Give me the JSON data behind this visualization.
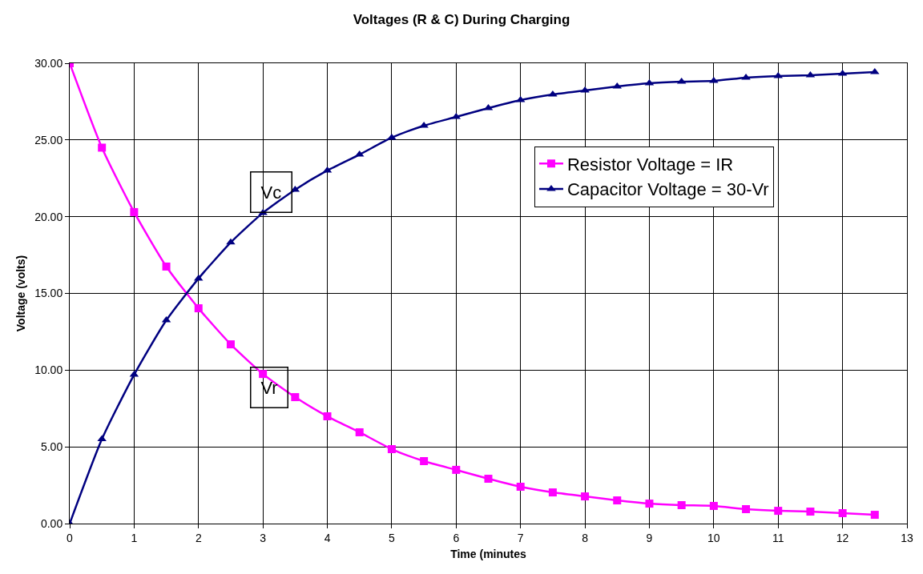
{
  "chart_data": {
    "type": "line",
    "title": "Voltages (R & C) During Charging",
    "xlabel": "Time (minutes",
    "ylabel": "Voltage (volts)",
    "x": [
      0,
      0.5,
      1,
      1.5,
      2,
      2.5,
      3,
      3.5,
      4,
      4.5,
      5,
      5.5,
      6,
      6.5,
      7,
      7.5,
      8,
      8.5,
      9,
      9.5,
      10,
      10.5,
      11,
      11.5,
      12,
      12.5
    ],
    "series": [
      {
        "name": "Resistor Voltage = IR",
        "color": "#ff00ff",
        "marker": "square",
        "values": [
          30,
          24.5,
          20.3,
          16.75,
          14.03,
          11.68,
          9.75,
          8.24,
          6.99,
          5.95,
          4.85,
          4.07,
          3.5,
          2.92,
          2.4,
          2.03,
          1.77,
          1.51,
          1.3,
          1.2,
          1.15,
          0.94,
          0.83,
          0.78,
          0.68,
          0.57
        ]
      },
      {
        "name": "Capacitor Voltage = 30-Vr",
        "color": "#000080",
        "marker": "triangle",
        "values": [
          0,
          5.5,
          9.7,
          13.25,
          15.97,
          18.32,
          20.25,
          21.76,
          23.01,
          24.05,
          25.15,
          25.93,
          26.5,
          27.08,
          27.6,
          27.97,
          28.23,
          28.49,
          28.7,
          28.8,
          28.85,
          29.06,
          29.17,
          29.22,
          29.32,
          29.43
        ]
      }
    ],
    "annotations": [
      "Vc",
      "Vr"
    ],
    "xlim": [
      0,
      13
    ],
    "xticks": [
      0,
      1,
      2,
      3,
      4,
      5,
      6,
      7,
      8,
      9,
      10,
      11,
      12,
      13
    ],
    "ylim": [
      0,
      30
    ],
    "yticks": [
      {
        "value": 0,
        "label": "0.00"
      },
      {
        "value": 5,
        "label": "5.00"
      },
      {
        "value": 10,
        "label": "10.00"
      },
      {
        "value": 15,
        "label": "15.00"
      },
      {
        "value": 20,
        "label": "20.00"
      },
      {
        "value": 25,
        "label": "25.00"
      },
      {
        "value": 30,
        "label": "30.00"
      }
    ],
    "grid": true,
    "legend": "top right",
    "line_style": "solid"
  }
}
